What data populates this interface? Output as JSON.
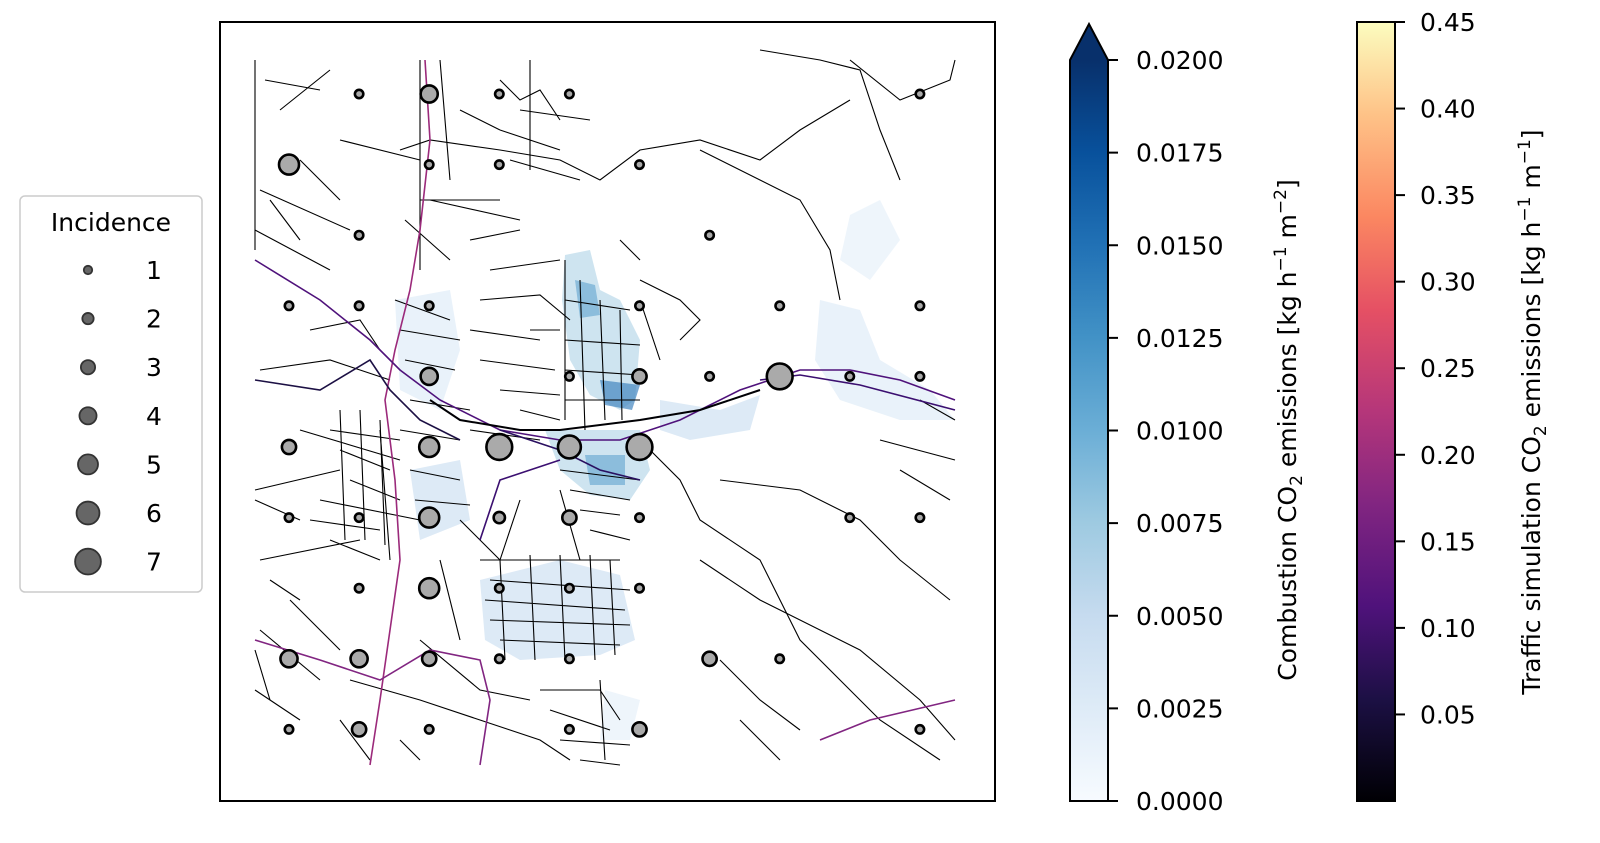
{
  "legend": {
    "title": "Incidence",
    "entries": [
      "1",
      "2",
      "3",
      "4",
      "5",
      "6",
      "7"
    ],
    "marker_color": "#666666"
  },
  "combustion_colorbar": {
    "label_prefix": "Combustion CO",
    "label_sub": "2",
    "label_mid": " emissions [kg h",
    "label_sup1": "−1",
    "label_mid2": " m",
    "label_sup2": "−2",
    "label_end": "]",
    "ticks": [
      "0.0000",
      "0.0025",
      "0.0050",
      "0.0075",
      "0.0100",
      "0.0125",
      "0.0150",
      "0.0175",
      "0.0200"
    ],
    "colormap": "Blues",
    "extend": "max",
    "range": [
      0,
      0.02
    ]
  },
  "traffic_colorbar": {
    "label_prefix": "Traffic simulation CO",
    "label_sub": "2",
    "label_mid": " emissions [kg h",
    "label_sup1": "−1",
    "label_mid2": " m",
    "label_sup2": "−1",
    "label_end": "]",
    "ticks": [
      "0.05",
      "0.10",
      "0.15",
      "0.20",
      "0.25",
      "0.30",
      "0.35",
      "0.40",
      "0.45"
    ],
    "colormap": "magma",
    "range": [
      0.0,
      0.45
    ]
  },
  "chart_data": {
    "type": "scatter",
    "grid_cols": 10,
    "grid_rows": 10,
    "marker_color": "#aaaaaa",
    "points": [
      {
        "col": 1,
        "row": 0,
        "incidence": 1
      },
      {
        "col": 2,
        "row": 0,
        "incidence": 4
      },
      {
        "col": 3,
        "row": 0,
        "incidence": 1
      },
      {
        "col": 4,
        "row": 0,
        "incidence": 1
      },
      {
        "col": 9,
        "row": 0,
        "incidence": 1
      },
      {
        "col": 0,
        "row": 1,
        "incidence": 5
      },
      {
        "col": 2,
        "row": 1,
        "incidence": 1
      },
      {
        "col": 3,
        "row": 1,
        "incidence": 1
      },
      {
        "col": 5,
        "row": 1,
        "incidence": 1
      },
      {
        "col": 1,
        "row": 2,
        "incidence": 1
      },
      {
        "col": 6,
        "row": 2,
        "incidence": 1
      },
      {
        "col": 0,
        "row": 3,
        "incidence": 1
      },
      {
        "col": 1,
        "row": 3,
        "incidence": 1
      },
      {
        "col": 2,
        "row": 3,
        "incidence": 1
      },
      {
        "col": 5,
        "row": 3,
        "incidence": 1
      },
      {
        "col": 7,
        "row": 3,
        "incidence": 1
      },
      {
        "col": 9,
        "row": 3,
        "incidence": 1
      },
      {
        "col": 2,
        "row": 4,
        "incidence": 4
      },
      {
        "col": 4,
        "row": 4,
        "incidence": 1
      },
      {
        "col": 5,
        "row": 4,
        "incidence": 3
      },
      {
        "col": 6,
        "row": 4,
        "incidence": 1
      },
      {
        "col": 7,
        "row": 4,
        "incidence": 7
      },
      {
        "col": 8,
        "row": 4,
        "incidence": 1
      },
      {
        "col": 9,
        "row": 4,
        "incidence": 1
      },
      {
        "col": 0,
        "row": 5,
        "incidence": 3
      },
      {
        "col": 2,
        "row": 5,
        "incidence": 5
      },
      {
        "col": 3,
        "row": 5,
        "incidence": 7
      },
      {
        "col": 4,
        "row": 5,
        "incidence": 6
      },
      {
        "col": 5,
        "row": 5,
        "incidence": 7
      },
      {
        "col": 0,
        "row": 6,
        "incidence": 1
      },
      {
        "col": 1,
        "row": 6,
        "incidence": 1
      },
      {
        "col": 2,
        "row": 6,
        "incidence": 5
      },
      {
        "col": 3,
        "row": 6,
        "incidence": 2
      },
      {
        "col": 4,
        "row": 6,
        "incidence": 3
      },
      {
        "col": 5,
        "row": 6,
        "incidence": 1
      },
      {
        "col": 8,
        "row": 6,
        "incidence": 1
      },
      {
        "col": 9,
        "row": 6,
        "incidence": 1
      },
      {
        "col": 1,
        "row": 7,
        "incidence": 1
      },
      {
        "col": 2,
        "row": 7,
        "incidence": 5
      },
      {
        "col": 3,
        "row": 7,
        "incidence": 1
      },
      {
        "col": 4,
        "row": 7,
        "incidence": 1
      },
      {
        "col": 5,
        "row": 7,
        "incidence": 1
      },
      {
        "col": 0,
        "row": 8,
        "incidence": 4
      },
      {
        "col": 1,
        "row": 8,
        "incidence": 4
      },
      {
        "col": 2,
        "row": 8,
        "incidence": 3
      },
      {
        "col": 3,
        "row": 8,
        "incidence": 1
      },
      {
        "col": 4,
        "row": 8,
        "incidence": 1
      },
      {
        "col": 6,
        "row": 8,
        "incidence": 3
      },
      {
        "col": 7,
        "row": 8,
        "incidence": 1
      },
      {
        "col": 0,
        "row": 9,
        "incidence": 1
      },
      {
        "col": 1,
        "row": 9,
        "incidence": 3
      },
      {
        "col": 2,
        "row": 9,
        "incidence": 1
      },
      {
        "col": 4,
        "row": 9,
        "incidence": 1
      },
      {
        "col": 5,
        "row": 9,
        "incidence": 3
      },
      {
        "col": 9,
        "row": 9,
        "incidence": 1
      }
    ]
  }
}
